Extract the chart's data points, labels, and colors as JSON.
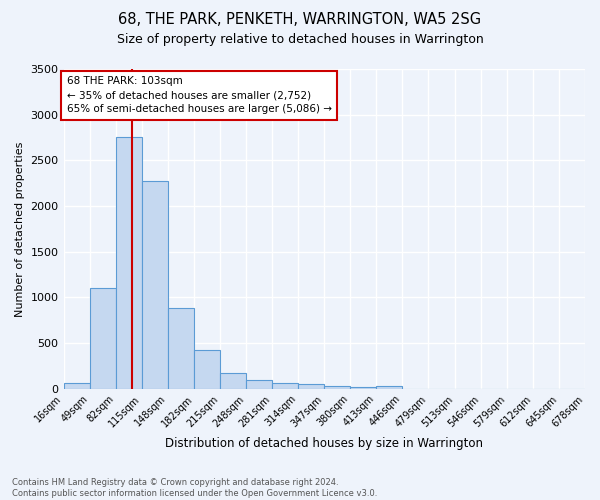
{
  "title": "68, THE PARK, PENKETH, WARRINGTON, WA5 2SG",
  "subtitle": "Size of property relative to detached houses in Warrington",
  "xlabel": "Distribution of detached houses by size in Warrington",
  "ylabel": "Number of detached properties",
  "footer1": "Contains HM Land Registry data © Crown copyright and database right 2024.",
  "footer2": "Contains public sector information licensed under the Open Government Licence v3.0.",
  "bar_color": "#c5d8f0",
  "bar_edge_color": "#5b9bd5",
  "background_color": "#eef3fb",
  "grid_color": "#ffffff",
  "tick_labels": [
    "16sqm",
    "49sqm",
    "82sqm",
    "115sqm",
    "148sqm",
    "182sqm",
    "215sqm",
    "248sqm",
    "281sqm",
    "314sqm",
    "347sqm",
    "380sqm",
    "413sqm",
    "446sqm",
    "479sqm",
    "513sqm",
    "546sqm",
    "579sqm",
    "612sqm",
    "645sqm",
    "678sqm"
  ],
  "bin_edges": [
    16,
    49,
    82,
    115,
    148,
    182,
    215,
    248,
    281,
    314,
    347,
    380,
    413,
    446,
    479,
    513,
    546,
    579,
    612,
    645,
    678
  ],
  "values": [
    60,
    1100,
    2760,
    2280,
    880,
    430,
    170,
    100,
    60,
    50,
    35,
    25,
    35,
    0,
    0,
    0,
    0,
    0,
    0,
    0
  ],
  "ylim": [
    0,
    3500
  ],
  "property_size": 103,
  "vline_color": "#cc0000",
  "annotation_line1": "68 THE PARK: 103sqm",
  "annotation_line2": "← 35% of detached houses are smaller (2,752)",
  "annotation_line3": "65% of semi-detached houses are larger (5,086) →",
  "annotation_box_color": "#ffffff",
  "annotation_box_edge": "#cc0000"
}
